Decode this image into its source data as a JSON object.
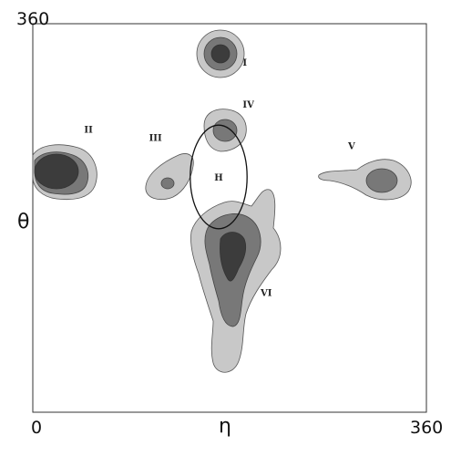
{
  "chart_data": {
    "type": "contour",
    "title": "",
    "xlabel": "η",
    "ylabel": "θ",
    "xlim": [
      0,
      360
    ],
    "ylim": [
      0,
      360
    ],
    "x_tick_labels": [
      "0",
      "360"
    ],
    "y_tick_labels": [
      "360"
    ],
    "grid": false,
    "legend": "none",
    "levels": [
      "low",
      "medium",
      "high"
    ],
    "level_colors": {
      "low": "#c8c8c8",
      "medium": "#787878",
      "high": "#3c3c3c",
      "outline": "#555555"
    },
    "regions": [
      {
        "label": "I",
        "eta": 172,
        "theta": 338,
        "levels": [
          "low",
          "medium",
          "high"
        ]
      },
      {
        "label": "IV",
        "eta": 172,
        "theta": 267,
        "levels": [
          "low",
          "medium"
        ]
      },
      {
        "label": "II",
        "eta": 22,
        "theta": 232,
        "levels": [
          "low",
          "medium",
          "high"
        ]
      },
      {
        "label": "III",
        "eta": 123,
        "theta": 226,
        "levels": [
          "low",
          "medium"
        ]
      },
      {
        "label": "V",
        "eta": 320,
        "theta": 227,
        "levels": [
          "low",
          "medium"
        ]
      },
      {
        "label": "VI",
        "eta": 180,
        "theta": 140,
        "levels": [
          "low",
          "medium",
          "high"
        ]
      }
    ],
    "annotations": [
      {
        "label": "H",
        "eta": 170,
        "theta": 218,
        "shape": "ellipse",
        "eta_radius": 26,
        "theta_radius": 48
      }
    ]
  }
}
